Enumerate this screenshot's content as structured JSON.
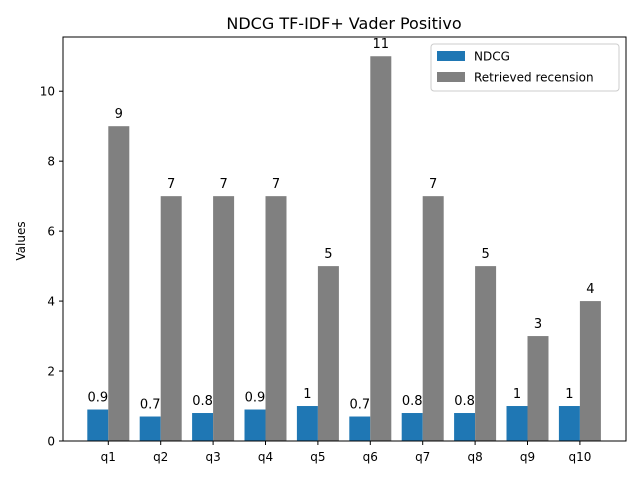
{
  "chart_data": {
    "type": "bar",
    "title": "NDCG TF-IDF+ Vader Positivo",
    "xlabel": "",
    "ylabel": "Values",
    "ylim": [
      0,
      11.55
    ],
    "yticks": [
      0,
      2,
      4,
      6,
      8,
      10
    ],
    "grid": false,
    "legend_position": "top-right",
    "categories": [
      "q1",
      "q2",
      "q3",
      "q4",
      "q5",
      "q6",
      "q7",
      "q8",
      "q9",
      "q10"
    ],
    "series": [
      {
        "name": "NDCG",
        "color": "#1f77b4",
        "values": [
          0.9,
          0.7,
          0.8,
          0.9,
          1,
          0.7,
          0.8,
          0.8,
          1,
          1
        ],
        "labels": [
          "0.9",
          "0.7",
          "0.8",
          "0.9",
          "1",
          "0.7",
          "0.8",
          "0.8",
          "1",
          "1"
        ]
      },
      {
        "name": "Retrieved recension",
        "color": "#808080",
        "values": [
          9,
          7,
          7,
          7,
          5,
          11,
          7,
          5,
          3,
          4
        ],
        "labels": [
          "9",
          "7",
          "7",
          "7",
          "5",
          "11",
          "7",
          "5",
          "3",
          "4"
        ]
      }
    ]
  }
}
